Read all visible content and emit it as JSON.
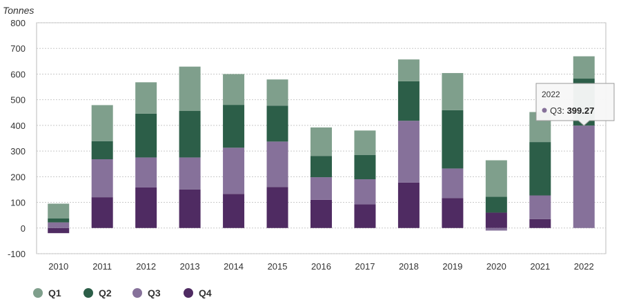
{
  "chart_data": {
    "type": "bar",
    "stacked": true,
    "title": "",
    "ylabel": "Tonnes",
    "xlabel": "",
    "ylim": [
      -100,
      800
    ],
    "yticks": [
      -100,
      0,
      100,
      200,
      300,
      400,
      500,
      600,
      700,
      800
    ],
    "grid": true,
    "legend_position": "bottom-left",
    "categories": [
      "2010",
      "2011",
      "2012",
      "2013",
      "2014",
      "2015",
      "2016",
      "2017",
      "2018",
      "2019",
      "2020",
      "2021",
      "2022"
    ],
    "series": [
      {
        "name": "Q1",
        "color": "#7f9f8c",
        "values": [
          58,
          141,
          122,
          172,
          120,
          102,
          111,
          95,
          85,
          145,
          142,
          117,
          87
        ]
      },
      {
        "name": "Q2",
        "color": "#2c5e48",
        "values": [
          15,
          70,
          171,
          182,
          167,
          140,
          83,
          95,
          154,
          227,
          62,
          208,
          183
        ]
      },
      {
        "name": "Q3",
        "color": "#86719a",
        "values": [
          22,
          148,
          117,
          125,
          180,
          177,
          88,
          98,
          241,
          115,
          -10,
          92,
          399.27
        ]
      },
      {
        "name": "Q4",
        "color": "#4f2b62",
        "values": [
          -20,
          120,
          158,
          150,
          133,
          160,
          110,
          92,
          177,
          117,
          60,
          35,
          0
        ]
      }
    ]
  },
  "tooltip": {
    "year": "2022",
    "series": "Q3",
    "value": "399.27",
    "color": "#86719a"
  },
  "legend": {
    "items": [
      {
        "label": "Q1",
        "color": "#7f9f8c"
      },
      {
        "label": "Q2",
        "color": "#2c5e48"
      },
      {
        "label": "Q3",
        "color": "#86719a"
      },
      {
        "label": "Q4",
        "color": "#4f2b62"
      }
    ]
  }
}
